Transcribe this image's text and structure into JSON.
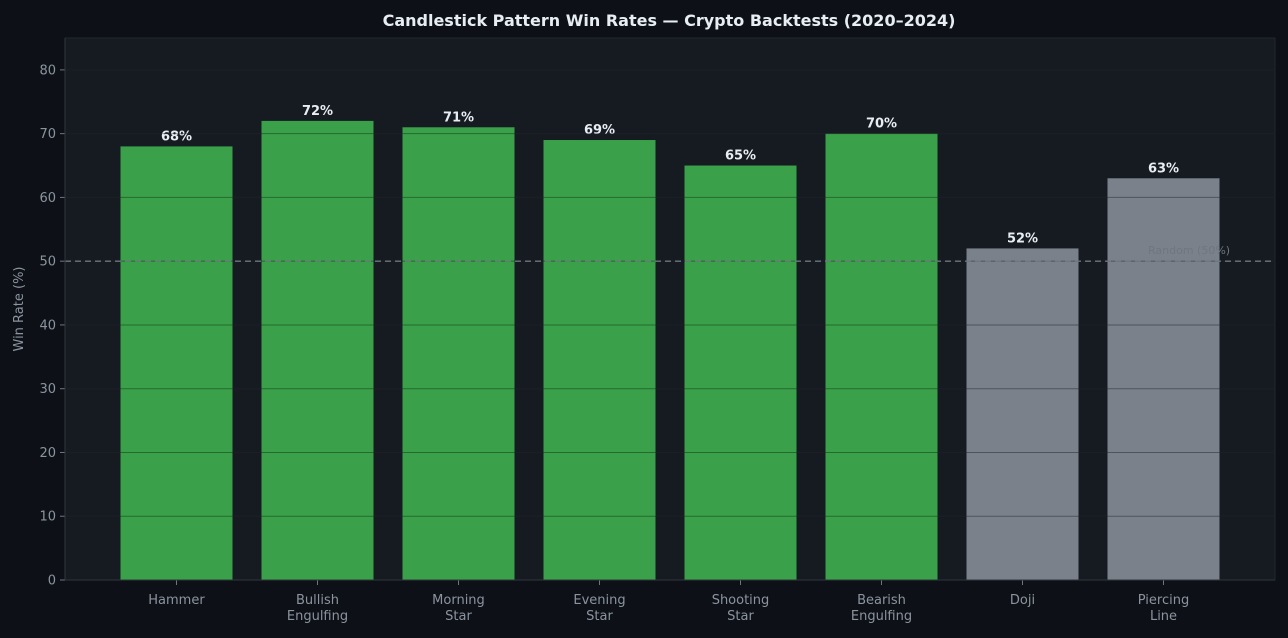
{
  "chart_data": {
    "type": "bar",
    "title": "Candlestick Pattern Win Rates — Crypto Backtests (2020–2024)",
    "ylabel": "Win Rate (%)",
    "xlabel": "",
    "ylim": [
      0,
      85
    ],
    "yticks": [
      "0",
      "10",
      "20",
      "30",
      "40",
      "50",
      "60",
      "70",
      "80"
    ],
    "ytick_values": [
      0,
      10,
      20,
      30,
      40,
      50,
      60,
      70,
      80
    ],
    "grid": true,
    "categories": [
      [
        "Hammer"
      ],
      [
        "Bullish",
        "Engulfing"
      ],
      [
        "Morning",
        "Star"
      ],
      [
        "Evening",
        "Star"
      ],
      [
        "Shooting",
        "Star"
      ],
      [
        "Bearish",
        "Engulfing"
      ],
      [
        "Doji"
      ],
      [
        "Piercing",
        "Line"
      ]
    ],
    "values": [
      68,
      72,
      71,
      69,
      65,
      70,
      52,
      63
    ],
    "value_labels": [
      "68%",
      "72%",
      "71%",
      "69%",
      "65%",
      "70%",
      "52%",
      "63%"
    ],
    "bar_colors": [
      "#3aa14a",
      "#3aa14a",
      "#3aa14a",
      "#3aa14a",
      "#3aa14a",
      "#3aa14a",
      "#7a818b",
      "#7a818b"
    ],
    "reference_line": {
      "value": 50,
      "label": "Random (50%)"
    },
    "colors": {
      "background": "#0d1117",
      "plot_background": "#161b22",
      "grid": "#2a3038",
      "reference": "#6e7681"
    }
  }
}
